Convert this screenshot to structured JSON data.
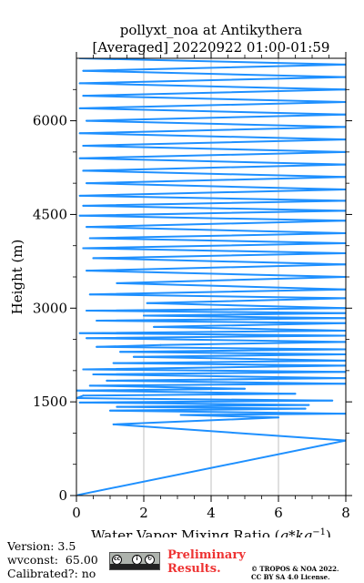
{
  "title_line1": "pollyxt_noa at Antikythera",
  "title_line2": "[Averaged] 20220922 01:00-01:59",
  "footer": {
    "version": "Version: 3.5",
    "wvconst": "wvconst:  65.00",
    "calibrated": "Calibrated?: no",
    "preliminary_line1": "Preliminary",
    "preliminary_line2": "Results.",
    "license_line1": "© TROPOS & NOA 2022.",
    "license_line2": "CC BY SA 4.0 License."
  },
  "icons": {
    "cc_license_logo": "cc-by-sa-logo"
  },
  "colors": {
    "profile": "#1e90ff",
    "preliminary": "#ee3333"
  },
  "chart_data": {
    "type": "line",
    "xlabel": "Water Vapor Mixing Ratio ($g*kg^{-1}$)",
    "ylabel": "Height (m)",
    "xlim": [
      0,
      8
    ],
    "ylim": [
      0,
      7000
    ],
    "xticks": [
      "0",
      "2",
      "4",
      "6",
      "8"
    ],
    "yticks": [
      "0",
      "1500",
      "3000",
      "4500",
      "6000"
    ],
    "x_grid": true,
    "y_grid": false,
    "series": [
      {
        "color": "#1e90ff",
        "points": [
          [
            0.05,
            10
          ],
          [
            8.0,
            880
          ],
          [
            1.1,
            1140
          ],
          [
            6.0,
            1250
          ],
          [
            3.1,
            1290
          ],
          [
            8.0,
            1310
          ],
          [
            1.0,
            1360
          ],
          [
            6.8,
            1390
          ],
          [
            1.2,
            1420
          ],
          [
            6.9,
            1450
          ],
          [
            0.1,
            1490
          ],
          [
            7.6,
            1520
          ],
          [
            0.0,
            1560
          ],
          [
            0.2,
            1600
          ],
          [
            6.5,
            1630
          ],
          [
            0.0,
            1680
          ],
          [
            5.0,
            1710
          ],
          [
            0.4,
            1760
          ],
          [
            8.0,
            1790
          ],
          [
            0.9,
            1840
          ],
          [
            8.0,
            1880
          ],
          [
            0.5,
            1940
          ],
          [
            8.0,
            1980
          ],
          [
            0.2,
            2020
          ],
          [
            8.0,
            2080
          ],
          [
            1.1,
            2120
          ],
          [
            8.0,
            2160
          ],
          [
            1.7,
            2220
          ],
          [
            8.0,
            2260
          ],
          [
            1.3,
            2300
          ],
          [
            8.0,
            2340
          ],
          [
            0.6,
            2380
          ],
          [
            2.5,
            2410
          ],
          [
            8.0,
            2460
          ],
          [
            0.3,
            2520
          ],
          [
            8.0,
            2560
          ],
          [
            0.1,
            2600
          ],
          [
            8.0,
            2640
          ],
          [
            2.3,
            2700
          ],
          [
            8.0,
            2760
          ],
          [
            0.6,
            2800
          ],
          [
            8.0,
            2840
          ],
          [
            2.0,
            2880
          ],
          [
            8.0,
            2920
          ],
          [
            0.3,
            2960
          ],
          [
            8.0,
            3000
          ],
          [
            2.1,
            3080
          ],
          [
            8.0,
            3160
          ],
          [
            0.4,
            3220
          ],
          [
            8.0,
            3300
          ],
          [
            1.2,
            3400
          ],
          [
            8.0,
            3500
          ],
          [
            0.3,
            3600
          ],
          [
            8.0,
            3700
          ],
          [
            0.5,
            3800
          ],
          [
            8.0,
            3880
          ],
          [
            0.2,
            3960
          ],
          [
            8.0,
            4040
          ],
          [
            0.4,
            4120
          ],
          [
            8.0,
            4200
          ],
          [
            0.3,
            4300
          ],
          [
            8.0,
            4400
          ],
          [
            0.1,
            4480
          ],
          [
            8.0,
            4560
          ],
          [
            0.2,
            4640
          ],
          [
            8.0,
            4720
          ],
          [
            0.1,
            4800
          ],
          [
            8.0,
            4900
          ],
          [
            0.3,
            5000
          ],
          [
            8.0,
            5100
          ],
          [
            0.2,
            5200
          ],
          [
            8.0,
            5300
          ],
          [
            0.1,
            5400
          ],
          [
            8.0,
            5500
          ],
          [
            0.2,
            5600
          ],
          [
            8.0,
            5700
          ],
          [
            0.1,
            5800
          ],
          [
            8.0,
            5900
          ],
          [
            0.3,
            6000
          ],
          [
            8.0,
            6100
          ],
          [
            0.1,
            6200
          ],
          [
            8.0,
            6300
          ],
          [
            0.2,
            6400
          ],
          [
            8.0,
            6500
          ],
          [
            0.1,
            6600
          ],
          [
            8.0,
            6700
          ],
          [
            0.2,
            6800
          ],
          [
            8.0,
            6900
          ],
          [
            0.1,
            7000
          ]
        ]
      }
    ]
  }
}
